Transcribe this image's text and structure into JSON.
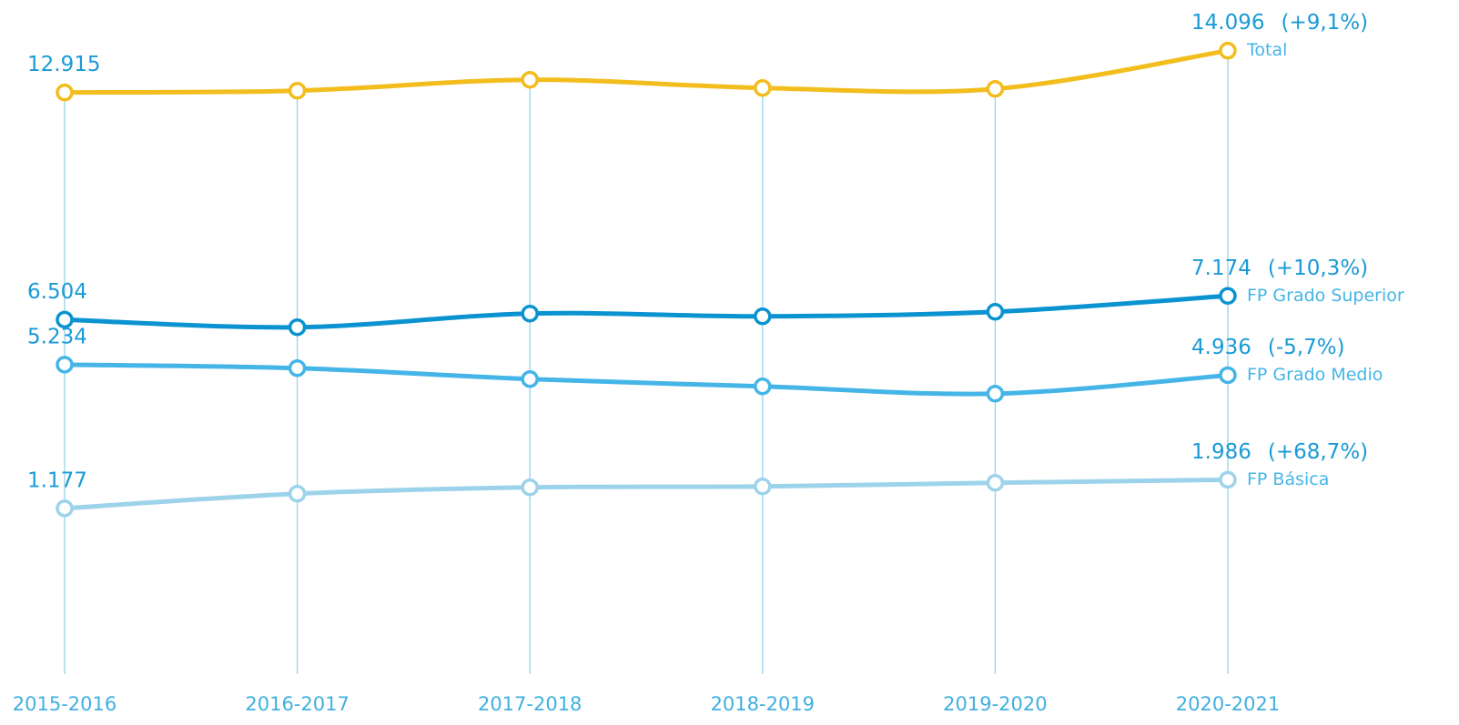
{
  "chart_data": {
    "type": "line",
    "categories": [
      "2015-2016",
      "2016-2017",
      "2017-2018",
      "2018-2019",
      "2019-2020",
      "2020-2021"
    ],
    "ylim": [
      -3500,
      15500
    ],
    "series": [
      {
        "name": "Total",
        "color": "#f2bd1d",
        "values": [
          12915,
          12966,
          13274,
          13043,
          13017,
          14096
        ],
        "value_labels": [
          "12.915",
          null,
          null,
          null,
          null,
          "14.096"
        ],
        "change": "(+9,1%)"
      },
      {
        "name": "FP Grado Superior",
        "color": "#0a93d0",
        "values": [
          6504,
          6289,
          6675,
          6597,
          6726,
          7174
        ],
        "value_labels": [
          "6.504",
          null,
          null,
          null,
          null,
          "7.174"
        ],
        "change": "(+10,3%)"
      },
      {
        "name": "FP Grado Medio",
        "color": "#45b5e8",
        "values": [
          5234,
          5134,
          4825,
          4620,
          4414,
          4936
        ],
        "value_labels": [
          "5.234",
          null,
          null,
          null,
          null,
          "4.936"
        ],
        "change": "(-5,7%)"
      },
      {
        "name": "FP Básica",
        "color": "#9dd3ea",
        "values": [
          1177,
          1590,
          1770,
          1795,
          1898,
          1986
        ],
        "value_labels": [
          "1.177",
          null,
          null,
          null,
          null,
          "1.986"
        ],
        "change": "(+68,7%)"
      }
    ]
  }
}
